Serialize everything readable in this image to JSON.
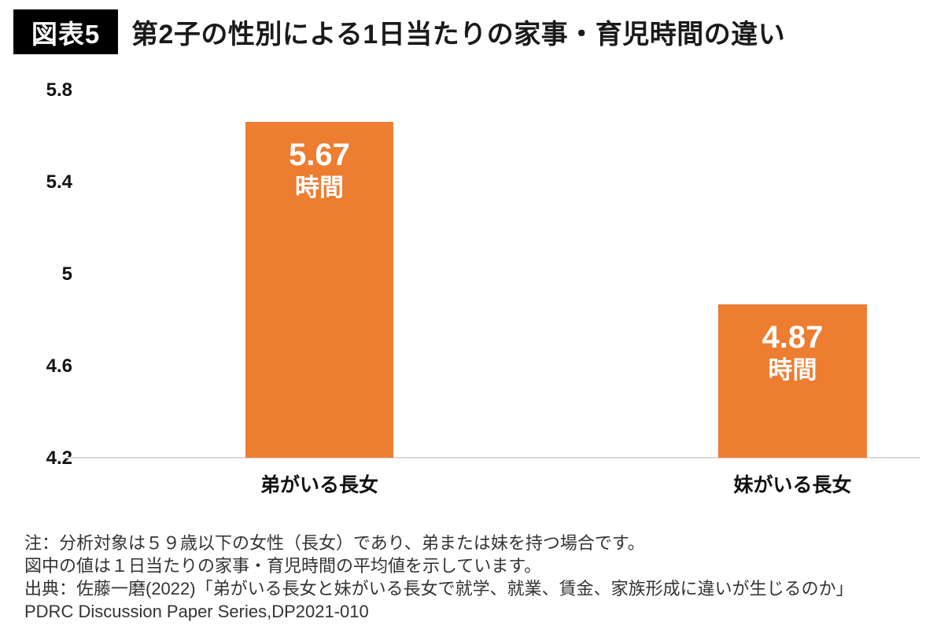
{
  "header": {
    "badge": "図表5",
    "title": "第2子の性別による1日当たりの家事・育児時間の違い"
  },
  "chart_data": {
    "type": "bar",
    "title": "第2子の性別による1日当たりの家事・育児時間の違い",
    "categories": [
      "弟がいる長女",
      "妹がいる長女"
    ],
    "values": [
      5.67,
      4.87
    ],
    "unit": "時間",
    "bar_labels": [
      {
        "value": "5.67",
        "unit": "時間"
      },
      {
        "value": "4.87",
        "unit": "時間"
      }
    ],
    "xlabel": "",
    "ylabel": "",
    "ylim": [
      4.2,
      5.8
    ],
    "yticks": [
      "5.8",
      "5.4",
      "5",
      "4.6",
      "4.2"
    ],
    "grid": false,
    "legend": false,
    "bar_color": "#ED7D31",
    "axis_line_color": "#D9D9D9"
  },
  "notes": [
    "注：分析対象は５９歳以下の女性（長女）であり、弟または妹を持つ場合です。",
    "図中の値は１日当たりの家事・育児時間の平均値を示しています。",
    "出典：佐藤一磨(2022)「弟がいる長女と妹がいる長女で就学、就業、賃金、家族形成に違いが生じるのか」",
    "PDRC  Discussion  Paper  Series,DP2021-010"
  ]
}
